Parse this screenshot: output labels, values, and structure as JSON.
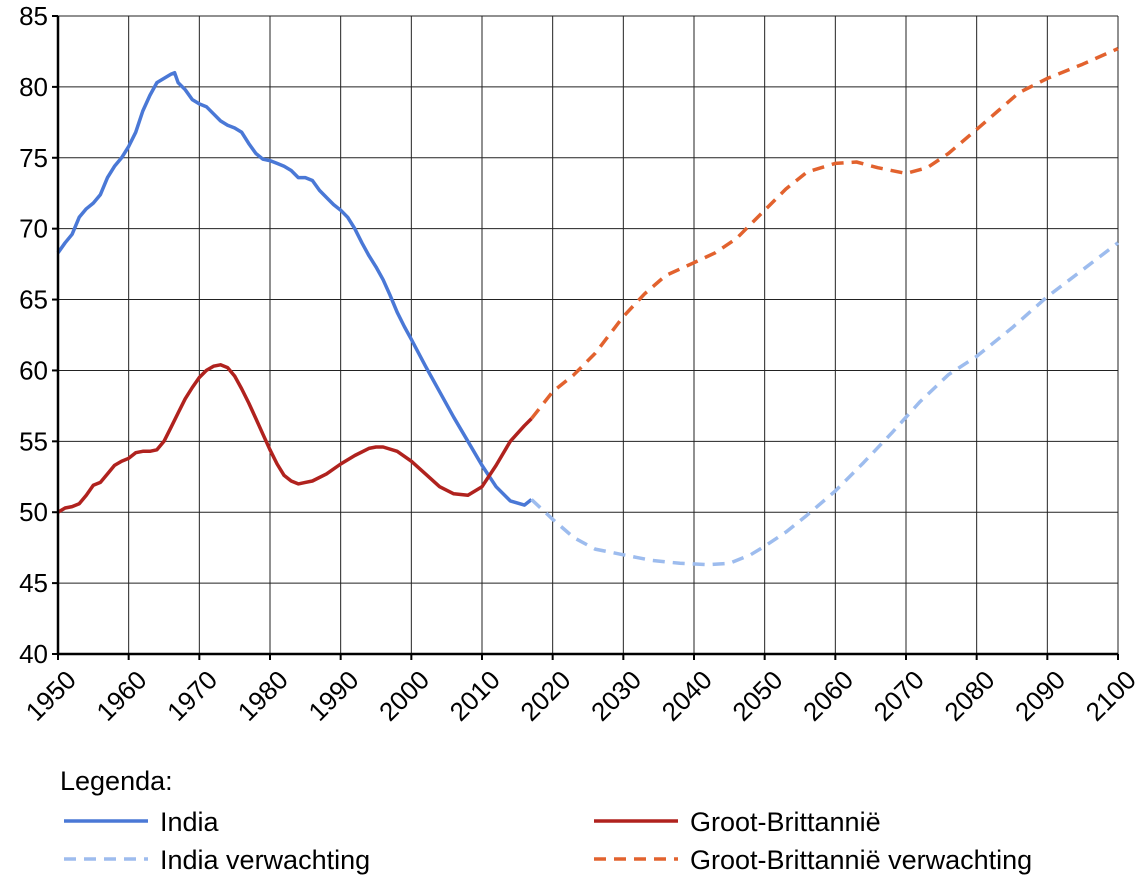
{
  "chart_data": {
    "type": "line",
    "xlabel": "",
    "ylabel": "",
    "xlim": [
      1950,
      2100
    ],
    "ylim": [
      40,
      85
    ],
    "x_ticks": [
      1950,
      1960,
      1970,
      1980,
      1990,
      2000,
      2010,
      2020,
      2030,
      2040,
      2050,
      2060,
      2070,
      2080,
      2090,
      2100
    ],
    "y_ticks": [
      40,
      45,
      50,
      55,
      60,
      65,
      70,
      75,
      80,
      85
    ],
    "grid": true,
    "legend_title": "Legenda:",
    "series": [
      {
        "name": "India",
        "color": "#4a78d6",
        "style": "solid",
        "points": [
          [
            1950,
            68.3
          ],
          [
            1951,
            69.0
          ],
          [
            1952,
            69.6
          ],
          [
            1953,
            70.8
          ],
          [
            1954,
            71.4
          ],
          [
            1955,
            71.8
          ],
          [
            1956,
            72.4
          ],
          [
            1957,
            73.6
          ],
          [
            1958,
            74.4
          ],
          [
            1959,
            75.0
          ],
          [
            1960,
            75.8
          ],
          [
            1961,
            76.8
          ],
          [
            1962,
            78.3
          ],
          [
            1963,
            79.4
          ],
          [
            1964,
            80.3
          ],
          [
            1965,
            80.6
          ],
          [
            1966,
            80.9
          ],
          [
            1966.5,
            81.0
          ],
          [
            1967,
            80.3
          ],
          [
            1968,
            79.8
          ],
          [
            1969,
            79.1
          ],
          [
            1970,
            78.8
          ],
          [
            1971,
            78.6
          ],
          [
            1972,
            78.1
          ],
          [
            1973,
            77.6
          ],
          [
            1974,
            77.3
          ],
          [
            1975,
            77.1
          ],
          [
            1976,
            76.8
          ],
          [
            1977,
            76.0
          ],
          [
            1978,
            75.3
          ],
          [
            1979,
            74.9
          ],
          [
            1980,
            74.8
          ],
          [
            1981,
            74.6
          ],
          [
            1982,
            74.4
          ],
          [
            1983,
            74.1
          ],
          [
            1984,
            73.6
          ],
          [
            1985,
            73.6
          ],
          [
            1986,
            73.4
          ],
          [
            1987,
            72.7
          ],
          [
            1988,
            72.2
          ],
          [
            1989,
            71.7
          ],
          [
            1990,
            71.3
          ],
          [
            1991,
            70.8
          ],
          [
            1992,
            70.0
          ],
          [
            1993,
            69.0
          ],
          [
            1994,
            68.1
          ],
          [
            1995,
            67.3
          ],
          [
            1996,
            66.4
          ],
          [
            1997,
            65.3
          ],
          [
            1998,
            64.1
          ],
          [
            1999,
            63.1
          ],
          [
            2000,
            62.2
          ],
          [
            2002,
            60.3
          ],
          [
            2004,
            58.5
          ],
          [
            2006,
            56.7
          ],
          [
            2008,
            55.0
          ],
          [
            2010,
            53.3
          ],
          [
            2012,
            51.8
          ],
          [
            2014,
            50.8
          ],
          [
            2016,
            50.5
          ],
          [
            2017,
            50.9
          ]
        ]
      },
      {
        "name": "Groot-Brittannië",
        "color": "#b0221e",
        "style": "solid",
        "points": [
          [
            1950,
            50.0
          ],
          [
            1951,
            50.3
          ],
          [
            1952,
            50.4
          ],
          [
            1953,
            50.6
          ],
          [
            1954,
            51.2
          ],
          [
            1955,
            51.9
          ],
          [
            1956,
            52.1
          ],
          [
            1957,
            52.7
          ],
          [
            1958,
            53.3
          ],
          [
            1959,
            53.6
          ],
          [
            1960,
            53.8
          ],
          [
            1961,
            54.2
          ],
          [
            1962,
            54.3
          ],
          [
            1963,
            54.3
          ],
          [
            1964,
            54.4
          ],
          [
            1965,
            55.0
          ],
          [
            1966,
            56.0
          ],
          [
            1967,
            57.0
          ],
          [
            1968,
            58.0
          ],
          [
            1969,
            58.8
          ],
          [
            1970,
            59.5
          ],
          [
            1971,
            60.0
          ],
          [
            1972,
            60.3
          ],
          [
            1973,
            60.4
          ],
          [
            1974,
            60.2
          ],
          [
            1975,
            59.6
          ],
          [
            1976,
            58.7
          ],
          [
            1977,
            57.7
          ],
          [
            1978,
            56.6
          ],
          [
            1979,
            55.5
          ],
          [
            1980,
            54.4
          ],
          [
            1981,
            53.4
          ],
          [
            1982,
            52.6
          ],
          [
            1983,
            52.2
          ],
          [
            1984,
            52.0
          ],
          [
            1985,
            52.1
          ],
          [
            1986,
            52.2
          ],
          [
            1988,
            52.7
          ],
          [
            1990,
            53.4
          ],
          [
            1992,
            54.0
          ],
          [
            1994,
            54.5
          ],
          [
            1995,
            54.6
          ],
          [
            1996,
            54.6
          ],
          [
            1998,
            54.3
          ],
          [
            2000,
            53.6
          ],
          [
            2002,
            52.7
          ],
          [
            2004,
            51.8
          ],
          [
            2006,
            51.3
          ],
          [
            2008,
            51.2
          ],
          [
            2010,
            51.8
          ],
          [
            2012,
            53.3
          ],
          [
            2014,
            55.0
          ],
          [
            2016,
            56.1
          ],
          [
            2017,
            56.6
          ]
        ]
      },
      {
        "name": "India verwachting",
        "color": "#9dbcee",
        "style": "dashed",
        "points": [
          [
            2017,
            50.9
          ],
          [
            2020,
            49.5
          ],
          [
            2023,
            48.2
          ],
          [
            2026,
            47.4
          ],
          [
            2030,
            47.0
          ],
          [
            2034,
            46.6
          ],
          [
            2038,
            46.4
          ],
          [
            2042,
            46.3
          ],
          [
            2045,
            46.4
          ],
          [
            2048,
            47.0
          ],
          [
            2050,
            47.6
          ],
          [
            2053,
            48.6
          ],
          [
            2056,
            49.8
          ],
          [
            2060,
            51.5
          ],
          [
            2064,
            53.5
          ],
          [
            2068,
            55.6
          ],
          [
            2072,
            57.8
          ],
          [
            2076,
            59.7
          ],
          [
            2080,
            61.0
          ],
          [
            2085,
            63.0
          ],
          [
            2090,
            65.2
          ],
          [
            2095,
            67.1
          ],
          [
            2100,
            69.0
          ]
        ]
      },
      {
        "name": "Groot-Brittannië verwachting",
        "color": "#e2622e",
        "style": "dashed",
        "points": [
          [
            2017,
            56.6
          ],
          [
            2020,
            58.5
          ],
          [
            2023,
            59.7
          ],
          [
            2026,
            61.2
          ],
          [
            2030,
            63.8
          ],
          [
            2033,
            65.4
          ],
          [
            2036,
            66.7
          ],
          [
            2040,
            67.6
          ],
          [
            2043,
            68.3
          ],
          [
            2046,
            69.3
          ],
          [
            2050,
            71.3
          ],
          [
            2053,
            72.8
          ],
          [
            2056,
            74.0
          ],
          [
            2060,
            74.6
          ],
          [
            2063,
            74.7
          ],
          [
            2066,
            74.3
          ],
          [
            2070,
            73.9
          ],
          [
            2073,
            74.3
          ],
          [
            2076,
            75.3
          ],
          [
            2080,
            77.0
          ],
          [
            2083,
            78.3
          ],
          [
            2086,
            79.6
          ],
          [
            2090,
            80.6
          ],
          [
            2095,
            81.6
          ],
          [
            2100,
            82.7
          ]
        ]
      }
    ]
  }
}
